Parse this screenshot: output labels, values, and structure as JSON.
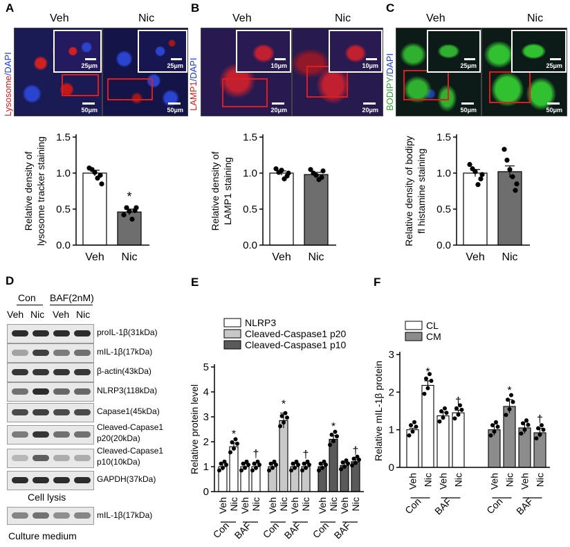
{
  "panels": {
    "A": {
      "letter": "A",
      "conditions": [
        "Veh",
        "Nic"
      ],
      "stain_label": {
        "part1": "Lysosome",
        "part2": "/DAPI"
      },
      "scale_main": "50μm",
      "scale_inset": "25μm",
      "colors": {
        "stain": "#e01818",
        "dapi": "#1a3ad8"
      }
    },
    "B": {
      "letter": "B",
      "conditions": [
        "Veh",
        "Nic"
      ],
      "stain_label": {
        "part1": "LAMP1",
        "part2": "/DAPI"
      },
      "scale_main": "20μm",
      "scale_inset": "10μm",
      "colors": {
        "stain": "#e01818",
        "dapi": "#1a3ad8"
      }
    },
    "C": {
      "letter": "C",
      "conditions": [
        "Veh",
        "Nic"
      ],
      "stain_label": {
        "part1": "BODIPY",
        "part2": "/DAPI"
      },
      "scale_main": "50μm",
      "scale_inset": "25μm",
      "colors": {
        "stain": "#2fc22f",
        "dapi": "#1a3ad8"
      }
    },
    "D": {
      "letter": "D",
      "group_labels": [
        "Con",
        "BAF(2nM)"
      ],
      "lane_labels": [
        "Veh",
        "Nic",
        "Veh",
        "Nic"
      ],
      "blots": [
        {
          "label": "proIL-1β(31kDa)",
          "bands": [
            0.95,
            0.95,
            0.95,
            0.95
          ]
        },
        {
          "label": "mIL-1β(17kDa)",
          "bands": [
            0.35,
            0.85,
            0.55,
            0.6
          ]
        },
        {
          "label": "β-actin(43kDa)",
          "bands": [
            0.9,
            0.9,
            0.9,
            0.9
          ]
        },
        {
          "label": "NLRP3(118kDa)",
          "bands": [
            0.6,
            0.95,
            0.65,
            0.65
          ]
        },
        {
          "label": "Capase1(45kDa)",
          "bands": [
            0.8,
            0.85,
            0.8,
            0.8
          ]
        },
        {
          "label": "Cleaved-Capase1",
          "label2": "p20(20kDa)",
          "bands": [
            0.55,
            0.9,
            0.6,
            0.6
          ]
        },
        {
          "label": "Cleaved-Capase1",
          "label2": "p10(10kDa)",
          "bands": [
            0.25,
            0.7,
            0.3,
            0.3
          ]
        },
        {
          "label": "GAPDH(37kDa)",
          "bands": [
            0.95,
            0.95,
            0.95,
            0.95
          ]
        }
      ],
      "cell_lysis_label": "Cell lysis",
      "medium_blot": {
        "label": "mIL-1β(17kDa)",
        "bands": [
          0.5,
          0.6,
          0.45,
          0.5
        ]
      },
      "culture_medium_label": "Culture medium"
    },
    "E": {
      "letter": "E"
    },
    "F": {
      "letter": "F"
    }
  },
  "chart_data": [
    {
      "type": "bar",
      "panel": "A",
      "categories": [
        "Veh",
        "Nic"
      ],
      "values": [
        1.0,
        0.46
      ],
      "errors": [
        0.04,
        0.04
      ],
      "points": [
        [
          1.07,
          0.97,
          1.05,
          0.93,
          1.01,
          0.85
        ],
        [
          0.42,
          0.48,
          0.52,
          0.36,
          0.47,
          0.52
        ]
      ],
      "fills": [
        "#ffffff",
        "#6e6e6e"
      ],
      "significance": [
        "",
        "*"
      ],
      "ylabel": "Relative density of lysosome tracker staining",
      "ylim": [
        0,
        1.5
      ],
      "yticks": [
        0.0,
        0.5,
        1.0,
        1.5
      ],
      "ytick_labels": [
        "0.0",
        "0.5",
        "1.0",
        "1.5"
      ]
    },
    {
      "type": "bar",
      "panel": "B",
      "categories": [
        "Veh",
        "Nic"
      ],
      "values": [
        1.0,
        0.98
      ],
      "errors": [
        0.03,
        0.03
      ],
      "points": [
        [
          1.06,
          0.96,
          1.01,
          0.92,
          1.04,
          1.0
        ],
        [
          1.05,
          0.94,
          1.0,
          0.91,
          0.97,
          1.03
        ]
      ],
      "fills": [
        "#ffffff",
        "#6e6e6e"
      ],
      "significance": [
        "",
        ""
      ],
      "ylabel": "Relative density of LAMP1 staining",
      "ylim": [
        0,
        1.5
      ],
      "yticks": [
        0.0,
        0.5,
        1.0,
        1.5
      ],
      "ytick_labels": [
        "0.0",
        "0.5",
        "1.0",
        "1.5"
      ]
    },
    {
      "type": "bar",
      "panel": "C",
      "categories": [
        "Veh",
        "Nic"
      ],
      "values": [
        1.0,
        1.02
      ],
      "errors": [
        0.05,
        0.08
      ],
      "points": [
        [
          1.12,
          0.92,
          1.06,
          0.84,
          1.02,
          0.98
        ],
        [
          1.33,
          0.76,
          1.18,
          0.95,
          1.05,
          0.85
        ]
      ],
      "fills": [
        "#ffffff",
        "#6e6e6e"
      ],
      "significance": [
        "",
        ""
      ],
      "ylabel": "Relative density of bodipy fl histamine staining",
      "ylim": [
        0,
        1.5
      ],
      "yticks": [
        0.0,
        0.5,
        1.0,
        1.5
      ],
      "ytick_labels": [
        "0.0",
        "0.5",
        "1.0",
        "1.5"
      ]
    },
    {
      "type": "bar",
      "panel": "E",
      "ylabel": "Relative protein level",
      "ylim": [
        0,
        5
      ],
      "yticks": [
        0,
        1,
        2,
        3,
        4,
        5
      ],
      "ytick_labels": [
        "0",
        "1",
        "2",
        "3",
        "4",
        "5"
      ],
      "legend": [
        "NLRP3",
        "Cleaved-Caspase1 p20",
        "Cleaved-Caspase1 p10"
      ],
      "legend_placement": "top-left",
      "fills": [
        "#ffffff",
        "#c8c8c8",
        "#5a5a5a"
      ],
      "categories": [
        "Veh",
        "Nic",
        "Veh",
        "Nic"
      ],
      "group_labels": [
        "Con",
        "BAF"
      ],
      "series": [
        {
          "values": [
            1.0,
            1.8,
            1.0,
            1.0
          ],
          "errors": [
            0.15,
            0.15,
            0.12,
            0.15
          ],
          "significance": [
            "",
            "*",
            "",
            "†"
          ]
        },
        {
          "values": [
            1.0,
            2.85,
            1.0,
            1.0
          ],
          "errors": [
            0.12,
            0.3,
            0.12,
            0.12
          ],
          "significance": [
            "",
            "*",
            "",
            "†"
          ]
        },
        {
          "values": [
            1.0,
            2.1,
            1.05,
            1.2
          ],
          "errors": [
            0.1,
            0.15,
            0.1,
            0.08
          ],
          "significance": [
            "",
            "*",
            "",
            "†"
          ]
        }
      ]
    },
    {
      "type": "bar",
      "panel": "F",
      "ylabel": "Relative mIL-1β protein",
      "ylim": [
        0,
        3
      ],
      "yticks": [
        0,
        1,
        2,
        3
      ],
      "ytick_labels": [
        "0",
        "1",
        "2",
        "3"
      ],
      "legend": [
        "CL",
        "CM"
      ],
      "legend_placement": "top-left",
      "fills": [
        "#ffffff",
        "#8c8c8c"
      ],
      "categories": [
        "Veh",
        "Nic",
        "Veh",
        "Nic"
      ],
      "group_labels": [
        "Con",
        "BAF"
      ],
      "series": [
        {
          "values": [
            1.0,
            2.18,
            1.37,
            1.45
          ],
          "errors": [
            0.04,
            0.12,
            0.1,
            0.07
          ],
          "significance": [
            "",
            "*",
            "",
            "†"
          ]
        },
        {
          "values": [
            1.0,
            1.62,
            1.05,
            0.92
          ],
          "errors": [
            0.15,
            0.18,
            0.15,
            0.12
          ],
          "significance": [
            "",
            "*",
            "",
            "†"
          ]
        }
      ]
    }
  ]
}
